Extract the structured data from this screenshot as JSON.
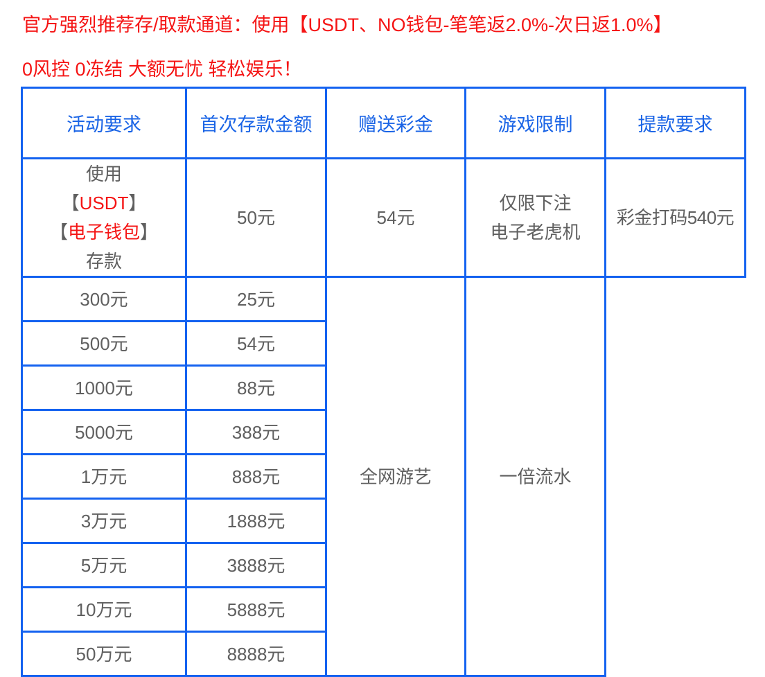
{
  "notice": {
    "line1": "官方强烈推荐存/取款通道：使用【USDT、NO钱包-笔笔返2.0%-次日返1.0%】",
    "line2": "0风控 0冻结 大额无忧 轻松娱乐！"
  },
  "table": {
    "headers": [
      "活动要求",
      "首次存款金额",
      "赠送彩金",
      "游戏限制",
      "提款要求"
    ],
    "requirement": {
      "line1": "使用",
      "usdt_open": "【",
      "usdt": "USDT",
      "usdt_close": "】",
      "wallet_open": "【",
      "wallet": "电子钱包",
      "wallet_close": "】",
      "line4": "存款"
    },
    "first_row": {
      "deposit": "50元",
      "bonus": "54元",
      "game_line1": "仅限下注",
      "game_line2": "电子老虎机",
      "withdraw": "彩金打码540元"
    },
    "rows": [
      {
        "deposit": "300元",
        "bonus": "25元"
      },
      {
        "deposit": "500元",
        "bonus": "54元"
      },
      {
        "deposit": "1000元",
        "bonus": "88元"
      },
      {
        "deposit": "5000元",
        "bonus": "388元"
      },
      {
        "deposit": "1万元",
        "bonus": "888元"
      },
      {
        "deposit": "3万元",
        "bonus": "1888元"
      },
      {
        "deposit": "5万元",
        "bonus": "3888元"
      },
      {
        "deposit": "10万元",
        "bonus": "5888元"
      },
      {
        "deposit": "50万元",
        "bonus": "8888元"
      }
    ],
    "game_limit": "全网游艺",
    "withdraw_req": "一倍流水"
  },
  "colors": {
    "border": "#1462f0",
    "header_text": "#1a64e6",
    "highlight": "#f51414",
    "body_text": "#5f5f5f"
  }
}
